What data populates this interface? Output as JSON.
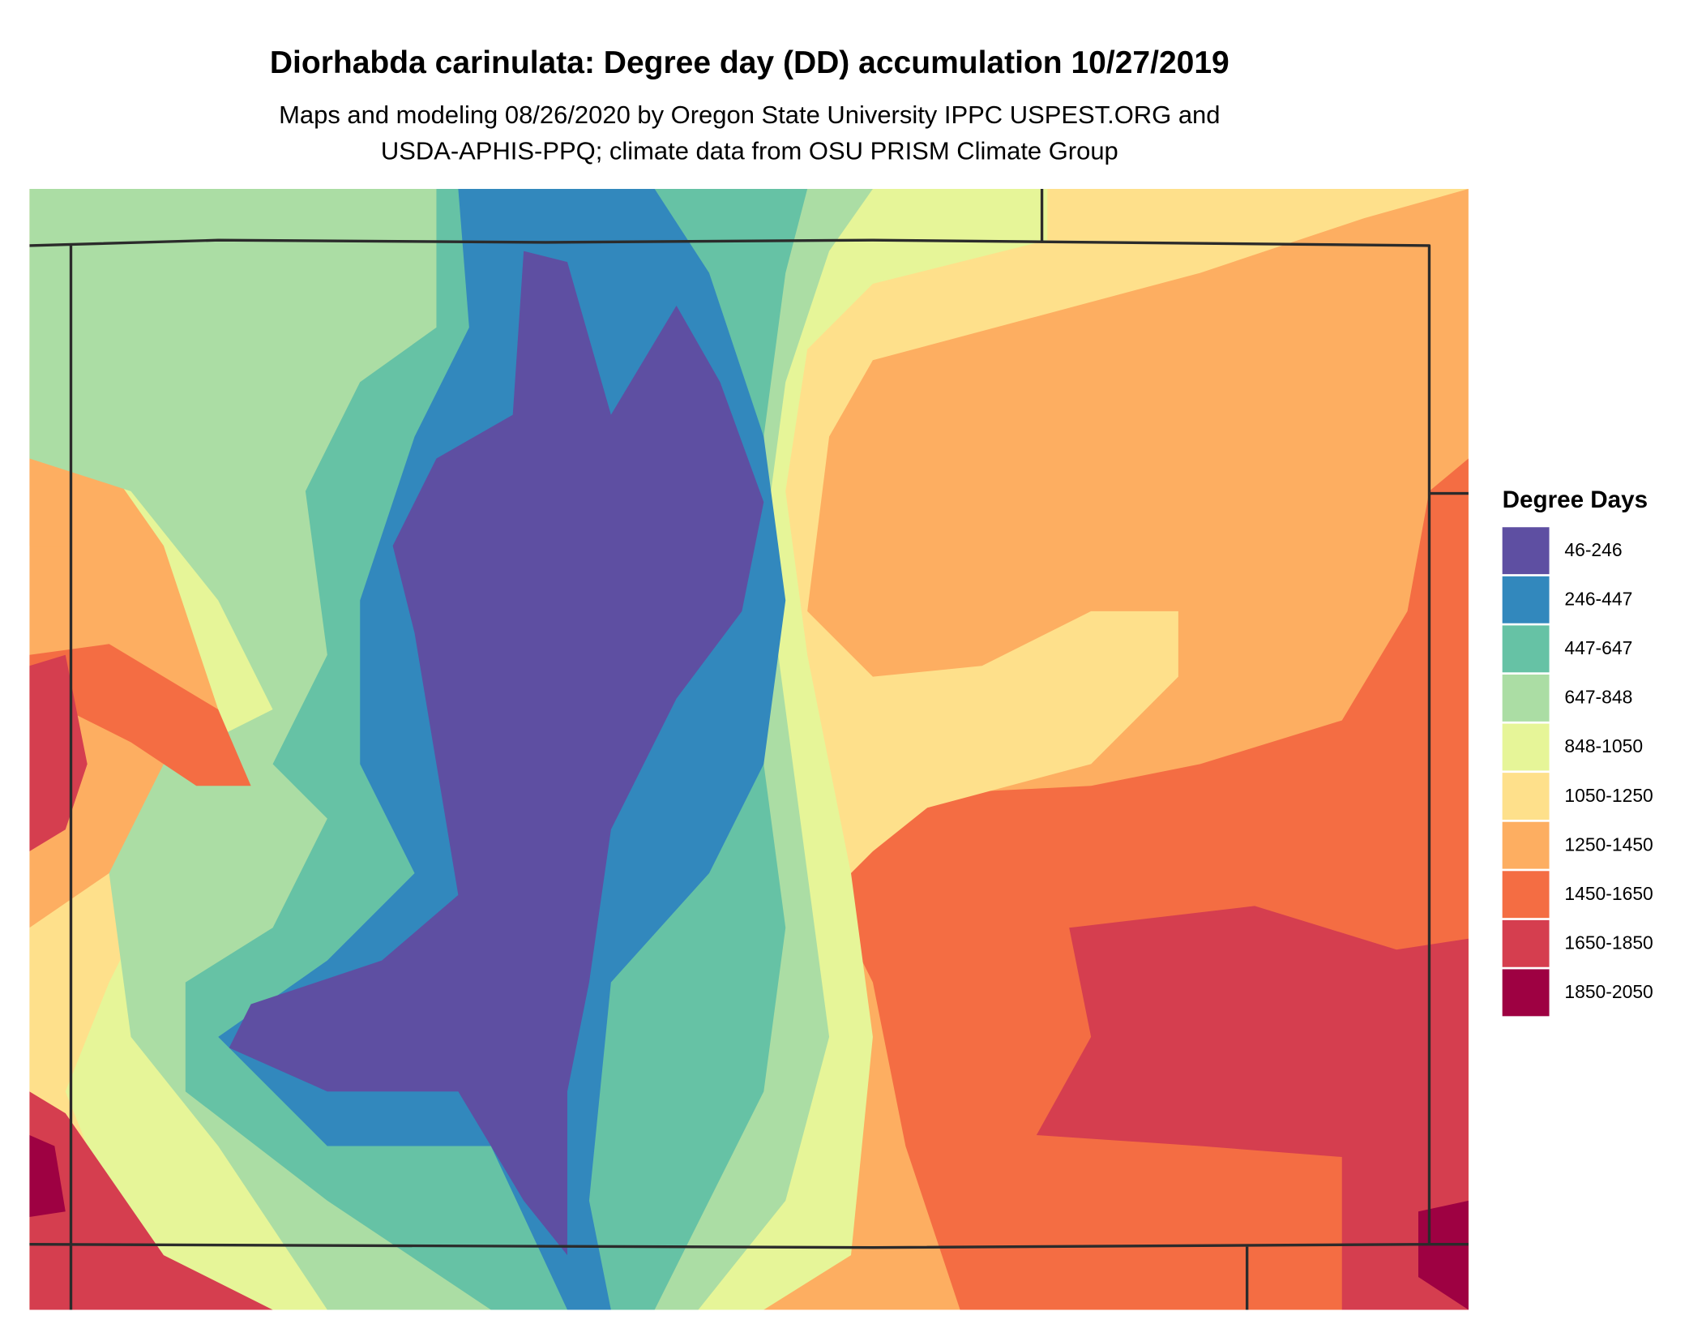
{
  "header": {
    "title": "Diorhabda carinulata: Degree day (DD) accumulation 10/27/2019",
    "subtitle": [
      "Maps and modeling 08/26/2020 by Oregon State University IPPC USPEST.ORG and",
      "USDA-APHIS-PPQ; climate data from OSU PRISM Climate Group"
    ]
  },
  "legend": {
    "title": "Degree Days",
    "items": [
      {
        "label": "46-246",
        "color": "#5e4fa2"
      },
      {
        "label": "246-447",
        "color": "#3288bd"
      },
      {
        "label": "447-647",
        "color": "#66c2a5"
      },
      {
        "label": "647-848",
        "color": "#abdda4"
      },
      {
        "label": "848-1050",
        "color": "#e6f598"
      },
      {
        "label": "1050-1250",
        "color": "#fee08b"
      },
      {
        "label": "1250-1450",
        "color": "#fdae61"
      },
      {
        "label": "1450-1650",
        "color": "#f46d43"
      },
      {
        "label": "1650-1850",
        "color": "#d53e4f"
      },
      {
        "label": "1850-2050",
        "color": "#9e0142"
      }
    ]
  }
}
